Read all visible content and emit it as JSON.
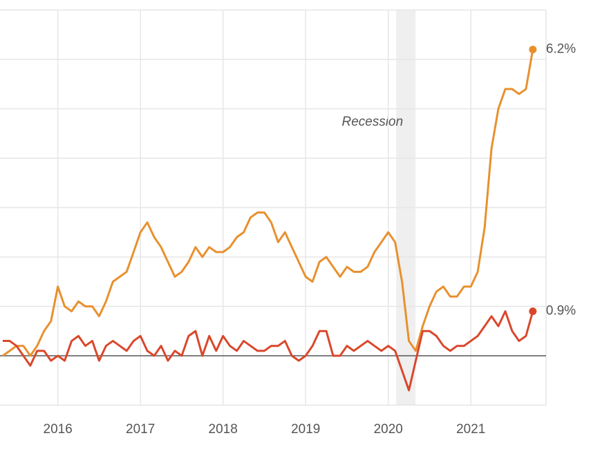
{
  "chart_data": {
    "type": "line",
    "x": [
      2015.333,
      2015.417,
      2015.5,
      2015.583,
      2015.667,
      2015.75,
      2015.833,
      2015.917,
      2016,
      2016.083,
      2016.167,
      2016.25,
      2016.333,
      2016.417,
      2016.5,
      2016.583,
      2016.667,
      2016.75,
      2016.833,
      2016.917,
      2017,
      2017.083,
      2017.167,
      2017.25,
      2017.333,
      2017.417,
      2017.5,
      2017.583,
      2017.667,
      2017.75,
      2017.833,
      2017.917,
      2018,
      2018.083,
      2018.167,
      2018.25,
      2018.333,
      2018.417,
      2018.5,
      2018.583,
      2018.667,
      2018.75,
      2018.833,
      2018.917,
      2019,
      2019.083,
      2019.167,
      2019.25,
      2019.333,
      2019.417,
      2019.5,
      2019.583,
      2019.667,
      2019.75,
      2019.833,
      2019.917,
      2020,
      2020.083,
      2020.167,
      2020.25,
      2020.333,
      2020.417,
      2020.5,
      2020.583,
      2020.667,
      2020.75,
      2020.833,
      2020.917,
      2021,
      2021.083,
      2021.167,
      2021.25,
      2021.333,
      2021.417,
      2021.5,
      2021.583,
      2021.667,
      2021.75
    ],
    "series": [
      {
        "color": "#e8902e",
        "end_label": "6.2%",
        "values": [
          0.0,
          0.1,
          0.2,
          0.2,
          0.0,
          0.2,
          0.5,
          0.7,
          1.4,
          1.0,
          0.9,
          1.1,
          1.0,
          1.0,
          0.8,
          1.1,
          1.5,
          1.6,
          1.7,
          2.1,
          2.5,
          2.7,
          2.4,
          2.2,
          1.9,
          1.6,
          1.7,
          1.9,
          2.2,
          2.0,
          2.2,
          2.1,
          2.1,
          2.2,
          2.4,
          2.5,
          2.8,
          2.9,
          2.9,
          2.7,
          2.3,
          2.5,
          2.2,
          1.9,
          1.6,
          1.5,
          1.9,
          2.0,
          1.8,
          1.6,
          1.8,
          1.7,
          1.7,
          1.8,
          2.1,
          2.3,
          2.5,
          2.3,
          1.5,
          0.3,
          0.1,
          0.6,
          1.0,
          1.3,
          1.4,
          1.2,
          1.2,
          1.4,
          1.4,
          1.7,
          2.6,
          4.2,
          5.0,
          5.4,
          5.4,
          5.3,
          5.4,
          6.2
        ]
      },
      {
        "color": "#d9472b",
        "end_label": "0.9%",
        "values": [
          0.3,
          0.3,
          0.2,
          0.0,
          -0.2,
          0.1,
          0.1,
          -0.1,
          0.0,
          -0.1,
          0.3,
          0.4,
          0.2,
          0.3,
          -0.1,
          0.2,
          0.3,
          0.2,
          0.1,
          0.3,
          0.4,
          0.1,
          0.0,
          0.2,
          -0.1,
          0.1,
          0.0,
          0.4,
          0.5,
          0.0,
          0.4,
          0.1,
          0.4,
          0.2,
          0.1,
          0.3,
          0.2,
          0.1,
          0.1,
          0.2,
          0.2,
          0.3,
          0.0,
          -0.1,
          0.0,
          0.2,
          0.5,
          0.5,
          0.0,
          0.0,
          0.2,
          0.1,
          0.2,
          0.3,
          0.2,
          0.1,
          0.2,
          0.1,
          -0.3,
          -0.7,
          -0.1,
          0.5,
          0.5,
          0.4,
          0.2,
          0.1,
          0.2,
          0.2,
          0.3,
          0.4,
          0.6,
          0.8,
          0.6,
          0.9,
          0.5,
          0.3,
          0.4,
          0.9
        ]
      }
    ],
    "xlim": [
      2015.3,
      2021.91
    ],
    "ylim": [
      -1,
      7
    ],
    "xticks": [
      2016,
      2017,
      2018,
      2019,
      2020,
      2021
    ],
    "yticks": [
      -1,
      0,
      1,
      2,
      3,
      4,
      5,
      6,
      7
    ],
    "zero_line": true,
    "grid": true,
    "recession": {
      "label": "Recession",
      "range": [
        2020.096,
        2020.33
      ]
    }
  }
}
